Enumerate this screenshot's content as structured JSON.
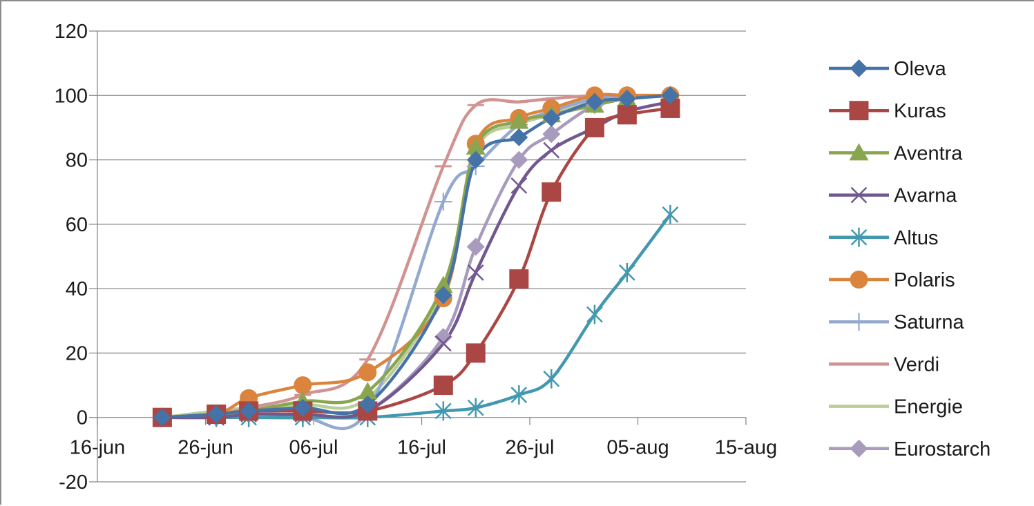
{
  "chart_data": {
    "type": "line",
    "title": "",
    "xlabel": "",
    "ylabel": "",
    "xlim": [
      "2000-06-16",
      "2000-08-15"
    ],
    "ylim": [
      -20,
      120
    ],
    "y_ticks": [
      120,
      100,
      80,
      60,
      40,
      20,
      0,
      -20
    ],
    "x_tick_labels": [
      "16-jun",
      "26-jun",
      "06-jul",
      "16-jul",
      "26-jul",
      "05-aug",
      "15-aug"
    ],
    "grid": "horizontal",
    "legend_position": "right",
    "smooth": true,
    "series": [
      {
        "name": "Oleva",
        "color": "#4572a7",
        "marker": "diamond",
        "x": [
          "06-22",
          "06-27",
          "06-30",
          "07-05",
          "07-11",
          "07-18",
          "07-21",
          "07-25",
          "07-28",
          "08-01",
          "08-04",
          "08-08"
        ],
        "y": [
          0,
          1,
          2,
          3,
          4,
          38,
          80,
          87,
          93,
          98,
          99,
          100
        ]
      },
      {
        "name": "Kuras",
        "color": "#aa4643",
        "marker": "square",
        "x": [
          "06-22",
          "06-27",
          "06-30",
          "07-05",
          "07-11",
          "07-18",
          "07-21",
          "07-25",
          "07-28",
          "08-01",
          "08-04",
          "08-08"
        ],
        "y": [
          0,
          1,
          2,
          2,
          2,
          10,
          20,
          43,
          70,
          90,
          94,
          96
        ]
      },
      {
        "name": "Aventra",
        "color": "#89a54e",
        "marker": "triangle",
        "x": [
          "06-22",
          "06-27",
          "06-30",
          "07-05",
          "07-11",
          "07-18",
          "07-21",
          "07-25",
          "07-28",
          "08-01",
          "08-04",
          "08-08"
        ],
        "y": [
          0,
          1,
          2,
          5,
          8,
          41,
          84,
          92,
          94,
          97,
          99,
          100
        ]
      },
      {
        "name": "Avarna",
        "color": "#71588f",
        "marker": "x",
        "x": [
          "06-22",
          "06-27",
          "06-30",
          "07-05",
          "07-11",
          "07-18",
          "07-21",
          "07-25",
          "07-28",
          "08-01",
          "08-04",
          "08-08"
        ],
        "y": [
          0,
          0,
          1,
          1,
          2,
          23,
          45,
          72,
          83,
          90,
          95,
          98
        ]
      },
      {
        "name": "Altus",
        "color": "#4198af",
        "marker": "star",
        "x": [
          "06-22",
          "06-27",
          "06-30",
          "07-05",
          "07-11",
          "07-18",
          "07-21",
          "07-25",
          "07-28",
          "08-01",
          "08-04",
          "08-08"
        ],
        "y": [
          0,
          0,
          0,
          0,
          0,
          2,
          3,
          7,
          12,
          32,
          45,
          63
        ]
      },
      {
        "name": "Polaris",
        "color": "#db843d",
        "marker": "circle",
        "x": [
          "06-22",
          "06-27",
          "06-30",
          "07-05",
          "07-11",
          "07-18",
          "07-21",
          "07-25",
          "07-28",
          "08-01",
          "08-04",
          "08-08"
        ],
        "y": [
          0,
          1,
          6,
          10,
          14,
          37,
          85,
          93,
          96,
          100,
          100,
          100
        ]
      },
      {
        "name": "Saturna",
        "color": "#93a9cf",
        "marker": "plus",
        "x": [
          "06-22",
          "06-27",
          "06-30",
          "07-05",
          "07-11",
          "07-18",
          "07-21",
          "07-25",
          "07-28",
          "08-01",
          "08-04",
          "08-08"
        ],
        "y": [
          0,
          0,
          0,
          0,
          2,
          67,
          78,
          91,
          95,
          99,
          100,
          100
        ]
      },
      {
        "name": "Verdi",
        "color": "#d19392",
        "marker": "dash",
        "x": [
          "06-22",
          "06-27",
          "06-30",
          "07-05",
          "07-11",
          "07-18",
          "07-21",
          "07-25",
          "07-28",
          "08-01",
          "08-04",
          "08-08"
        ],
        "y": [
          0,
          1,
          3,
          7,
          18,
          78,
          97,
          98,
          99,
          100,
          100,
          100
        ]
      },
      {
        "name": "Energie",
        "color": "#b9cd96",
        "marker": "none",
        "x": [
          "06-22",
          "06-27",
          "06-30",
          "07-05",
          "07-11",
          "07-18",
          "07-21",
          "07-25",
          "07-28",
          "08-01",
          "08-04",
          "08-08"
        ],
        "y": [
          0,
          2,
          3,
          4,
          6,
          40,
          83,
          91,
          94,
          98,
          99,
          100
        ]
      },
      {
        "name": "Eurostarch",
        "color": "#a99bbd",
        "marker": "diamond",
        "x": [
          "06-22",
          "06-27",
          "06-30",
          "07-05",
          "07-11",
          "07-18",
          "07-21",
          "07-25",
          "07-28",
          "08-01",
          "08-04",
          "08-08"
        ],
        "y": [
          0,
          0,
          1,
          1,
          2,
          25,
          53,
          80,
          88,
          97,
          99,
          100
        ]
      }
    ]
  }
}
